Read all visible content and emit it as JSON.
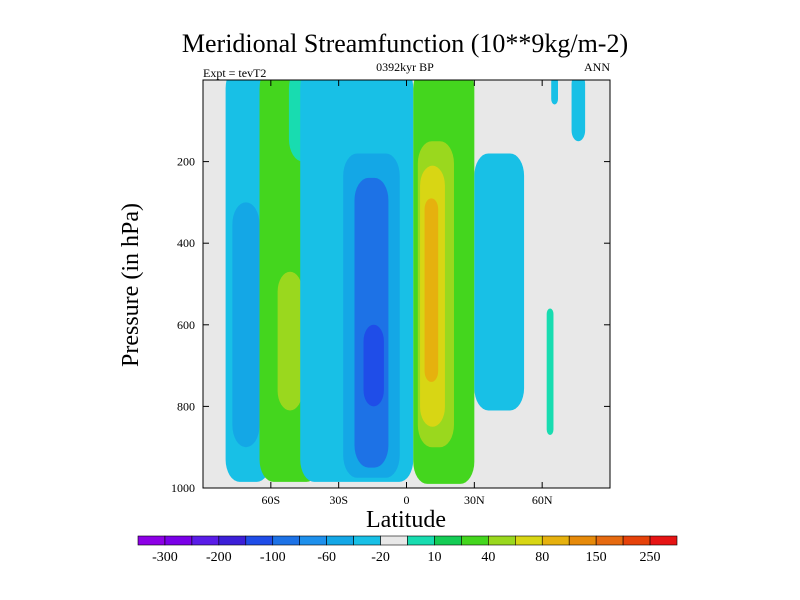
{
  "chart_data": {
    "type": "heatmap",
    "title": "Meridional Streamfunction (10**9kg/m-2)",
    "subtitle": "0392kyr BP",
    "left_label": "Expt = tevT2",
    "right_label": "ANN",
    "xlabel": "Latitude",
    "ylabel": "Pressure (in hPa)",
    "xlim": [
      -90,
      90
    ],
    "ylim": [
      1000,
      0
    ],
    "x_ticks": [
      {
        "value": -60,
        "label": "60S"
      },
      {
        "value": -30,
        "label": "30S"
      },
      {
        "value": 0,
        "label": "0"
      },
      {
        "value": 30,
        "label": "30N"
      },
      {
        "value": 60,
        "label": "60N"
      }
    ],
    "y_ticks": [
      {
        "value": 200,
        "label": "200"
      },
      {
        "value": 400,
        "label": "400"
      },
      {
        "value": 600,
        "label": "600"
      },
      {
        "value": 800,
        "label": "800"
      },
      {
        "value": 1000,
        "label": "1000"
      }
    ],
    "colorbar": {
      "colors": [
        "#8d00e6",
        "#7a00e8",
        "#5a1ce8",
        "#3c1fd8",
        "#1f4de8",
        "#1d72e6",
        "#1e90ec",
        "#14a7e6",
        "#18c0e6",
        "#e8e8e8",
        "#18dcb0",
        "#14cc55",
        "#44d61e",
        "#9ad81e",
        "#d8d614",
        "#e6b10e",
        "#e68a0a",
        "#e66a10",
        "#e6420a",
        "#e61414"
      ],
      "tick_labels": [
        {
          "after_index": 1,
          "label": "-300"
        },
        {
          "after_index": 3,
          "label": "-200"
        },
        {
          "after_index": 5,
          "label": "-100"
        },
        {
          "after_index": 7,
          "label": "-60"
        },
        {
          "after_index": 9,
          "label": "-20"
        },
        {
          "after_index": 11,
          "label": "10"
        },
        {
          "after_index": 13,
          "label": "40"
        },
        {
          "after_index": 15,
          "label": "80"
        },
        {
          "after_index": 17,
          "label": "150"
        },
        {
          "after_index": 19,
          "label": "250"
        }
      ]
    },
    "regions": [
      {
        "level": -20,
        "color": "#18c0e6",
        "x_range": [
          -80,
          -60
        ],
        "p_range": [
          0,
          985
        ]
      },
      {
        "level": -60,
        "color": "#14a7e6",
        "x_range": [
          -77,
          -65
        ],
        "p_range": [
          300,
          900
        ]
      },
      {
        "level": 40,
        "color": "#44d61e",
        "x_range": [
          -65,
          -38
        ],
        "p_range": [
          0,
          985
        ]
      },
      {
        "level": 10,
        "color": "#18dcb0",
        "x_range": [
          -52,
          -38
        ],
        "p_range": [
          0,
          200
        ]
      },
      {
        "level": 80,
        "color": "#9ad81e",
        "x_range": [
          -57,
          -46
        ],
        "p_range": [
          470,
          810
        ]
      },
      {
        "level": -20,
        "color": "#18c0e6",
        "x_range": [
          -47,
          3
        ],
        "p_range": [
          0,
          985
        ]
      },
      {
        "level": -60,
        "color": "#14a7e6",
        "x_range": [
          -28,
          -3
        ],
        "p_range": [
          180,
          975
        ]
      },
      {
        "level": -100,
        "color": "#1d72e6",
        "x_range": [
          -23,
          -8
        ],
        "p_range": [
          240,
          950
        ]
      },
      {
        "level": -200,
        "color": "#1f4de8",
        "x_range": [
          -19,
          -10
        ],
        "p_range": [
          600,
          800
        ]
      },
      {
        "level": -20,
        "color": "#18c0e6",
        "x_range": [
          -2,
          2
        ],
        "p_range": [
          140,
          170
        ]
      },
      {
        "level": 40,
        "color": "#44d61e",
        "x_range": [
          3,
          30
        ],
        "p_range": [
          0,
          990
        ]
      },
      {
        "level": 80,
        "color": "#9ad81e",
        "x_range": [
          5,
          21
        ],
        "p_range": [
          150,
          900
        ]
      },
      {
        "level": 150,
        "color": "#d8d614",
        "x_range": [
          6,
          17
        ],
        "p_range": [
          210,
          850
        ]
      },
      {
        "level": 250,
        "color": "#e6b10e",
        "x_range": [
          8,
          14
        ],
        "p_range": [
          290,
          740
        ]
      },
      {
        "level": -20,
        "color": "#18c0e6",
        "x_range": [
          30,
          52
        ],
        "p_range": [
          180,
          810
        ]
      },
      {
        "level": 10,
        "color": "#18dcb0",
        "x_range": [
          62,
          65
        ],
        "p_range": [
          560,
          870
        ]
      },
      {
        "level": -20,
        "color": "#18c0e6",
        "x_range": [
          64,
          67
        ],
        "p_range": [
          0,
          60
        ]
      },
      {
        "level": -20,
        "color": "#18c0e6",
        "x_range": [
          73,
          79
        ],
        "p_range": [
          0,
          150
        ]
      }
    ]
  }
}
